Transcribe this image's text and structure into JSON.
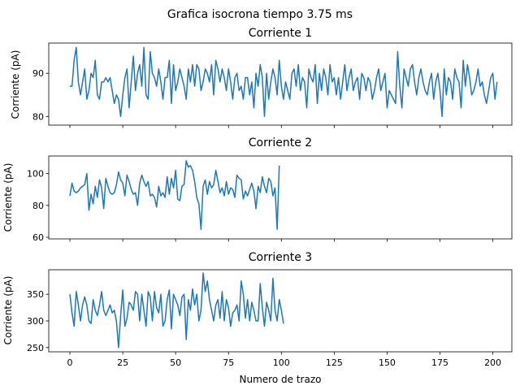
{
  "figure": {
    "suptitle": "Grafica isocrona tiempo 3.75 ms",
    "shared_xlabel": "Numero de trazo",
    "line_color": "#1f77b4"
  },
  "chart_data": [
    {
      "type": "line",
      "title": "Corriente 1",
      "xlabel": "",
      "ylabel": "Corriente (pA)",
      "xlim": [
        -10,
        209
      ],
      "ylim": [
        78,
        97
      ],
      "xticks": [
        0,
        25,
        50,
        75,
        100,
        125,
        150,
        175,
        200
      ],
      "yticks": [
        80,
        90
      ],
      "ytick_labels": [
        "80",
        "90"
      ],
      "x_start": 0,
      "x_step": 1,
      "values": [
        87,
        87,
        93,
        96,
        88,
        85,
        88,
        91,
        84,
        86,
        90,
        89,
        93,
        85,
        84,
        88,
        88,
        89,
        88,
        89,
        86,
        83,
        85,
        84,
        80,
        85,
        89,
        91,
        82,
        88,
        94,
        86,
        90,
        92,
        87,
        96,
        85,
        84,
        95,
        90,
        89,
        87,
        91,
        88,
        84,
        89,
        89,
        93,
        83,
        92,
        86,
        88,
        91,
        89,
        87,
        84,
        91,
        88,
        92,
        87,
        92,
        91,
        86,
        88,
        91,
        90,
        88,
        92,
        85,
        93,
        91,
        88,
        91,
        89,
        86,
        91,
        88,
        84,
        89,
        90,
        86,
        87,
        84,
        89,
        89,
        85,
        88,
        82,
        90,
        87,
        92,
        89,
        80,
        90,
        84,
        88,
        91,
        89,
        85,
        93,
        87,
        84,
        88,
        86,
        84,
        90,
        91,
        87,
        92,
        86,
        89,
        88,
        82,
        91,
        89,
        88,
        92,
        83,
        90,
        86,
        91,
        89,
        85,
        92,
        88,
        89,
        85,
        89,
        84,
        88,
        92,
        86,
        89,
        91,
        86,
        88,
        89,
        84,
        90,
        89,
        86,
        89,
        88,
        84,
        86,
        89,
        91,
        86,
        88,
        90,
        82,
        86,
        85,
        84,
        83,
        95,
        87,
        82,
        91,
        89,
        87,
        91,
        92,
        88,
        85,
        89,
        91,
        88,
        86,
        85,
        88,
        90,
        84,
        88,
        90,
        86,
        80,
        91,
        85,
        89,
        88,
        84,
        91,
        89,
        88,
        82,
        93,
        87,
        92,
        89,
        85,
        86,
        88,
        91,
        87,
        88,
        85,
        83,
        86,
        89,
        90,
        84,
        88
      ]
    },
    {
      "type": "line",
      "title": "Corriente 2",
      "xlabel": "",
      "ylabel": "Corriente (pA)",
      "xlim": [
        -10,
        209
      ],
      "ylim": [
        59,
        111
      ],
      "xticks": [
        0,
        25,
        50,
        75,
        100,
        125,
        150,
        175,
        200
      ],
      "yticks": [
        60,
        80,
        100
      ],
      "ytick_labels": [
        "60",
        "80",
        "100"
      ],
      "x_start": 0,
      "x_step": 1,
      "values": [
        86,
        94,
        89,
        88,
        89,
        91,
        92,
        93,
        100,
        77,
        87,
        81,
        92,
        85,
        96,
        91,
        78,
        97,
        92,
        88,
        87,
        88,
        93,
        101,
        96,
        94,
        86,
        99,
        95,
        90,
        87,
        88,
        80,
        94,
        99,
        95,
        92,
        95,
        86,
        87,
        85,
        79,
        92,
        86,
        88,
        85,
        98,
        87,
        97,
        91,
        102,
        84,
        83,
        92,
        93,
        108,
        104,
        105,
        102,
        95,
        85,
        81,
        65,
        92,
        96,
        87,
        95,
        91,
        93,
        102,
        95,
        88,
        91,
        86,
        95,
        87,
        91,
        90,
        85,
        99,
        97,
        96,
        84,
        89,
        86,
        90,
        94,
        89,
        78,
        92,
        88,
        98,
        92,
        88,
        97,
        95,
        86,
        91,
        65,
        105
      ]
    },
    {
      "type": "line",
      "title": "Corriente 3",
      "xlabel": "Numero de trazo",
      "ylabel": "Corriente (pA)",
      "xlim": [
        -10,
        209
      ],
      "ylim": [
        242,
        396
      ],
      "xticks": [
        0,
        25,
        50,
        75,
        100,
        125,
        150,
        175,
        200
      ],
      "yticks": [
        250,
        300,
        350
      ],
      "ytick_labels": [
        "250",
        "300",
        "350"
      ],
      "x_start": 0,
      "x_step": 1,
      "values": [
        350,
        315,
        290,
        355,
        330,
        300,
        330,
        345,
        330,
        300,
        295,
        340,
        320,
        310,
        330,
        355,
        320,
        310,
        320,
        330,
        315,
        320,
        300,
        250,
        310,
        358,
        290,
        305,
        335,
        330,
        320,
        355,
        350,
        300,
        350,
        320,
        290,
        355,
        345,
        300,
        355,
        325,
        315,
        350,
        290,
        300,
        340,
        358,
        285,
        350,
        340,
        330,
        310,
        345,
        350,
        265,
        340,
        320,
        360,
        330,
        350,
        300,
        320,
        390,
        355,
        375,
        340,
        320,
        300,
        330,
        340,
        305,
        355,
        300,
        340,
        325,
        290,
        315,
        320,
        330,
        300,
        375,
        350,
        305,
        340,
        300,
        335,
        320,
        300,
        300,
        370,
        325,
        290,
        335,
        320,
        300,
        380,
        320,
        300,
        340,
        320,
        295
      ]
    }
  ]
}
